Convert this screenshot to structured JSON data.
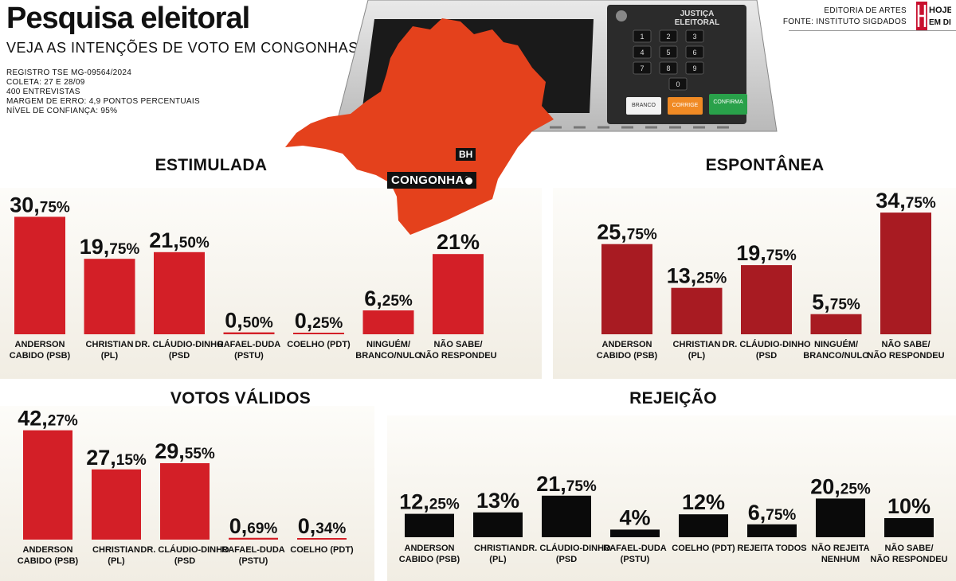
{
  "header": {
    "title": "Pesquisa eleitoral",
    "subtitle": "VEJA AS INTENÇÕES DE VOTO EM CONGONHAS",
    "meta": [
      "REGISTRO TSE MG-09564/2024",
      "COLETA: 27 E 28/09",
      "400 ENTREVISTAS",
      "MARGEM DE ERRO: 4,9 PONTOS PERCENTUAIS",
      "NÍVEL DE CONFIANÇA: 95%"
    ],
    "credit1": "EDITORIA DE ARTES",
    "credit2": "FONTE: INSTITUTO SIGDADOS",
    "logo_line1": "HOJE",
    "logo_line2": "EM DIA"
  },
  "map": {
    "label_bh": "BH",
    "label_city": "CONGONHAS"
  },
  "urna": {
    "brand1": "JUSTIÇA",
    "brand2": "ELEITORAL",
    "btn_branco": "BRANCO",
    "btn_corrige": "CORRIGE",
    "btn_confirma": "CONFIRMA"
  },
  "colors": {
    "red": "#d31f27",
    "darkred": "#a81b22",
    "black": "#0a0a0a",
    "map": "#e4411c"
  },
  "chart_data": [
    {
      "type": "bar",
      "title": "ESTIMULADA",
      "categories": [
        [
          "ANDERSON",
          "CABIDO (PSB)"
        ],
        [
          "CHRISTIAN",
          "(PL)"
        ],
        [
          "DR. CLÁUDIO-DINHO",
          "(PSD"
        ],
        [
          "RAFAEL-DUDA",
          "(PSTU)"
        ],
        [
          "COELHO (PDT)"
        ],
        [
          "NINGUÉM/",
          "BRANCO/NULO"
        ],
        [
          "NÃO SABE/",
          "NÃO RESPONDEU"
        ]
      ],
      "values": [
        30.75,
        19.75,
        21.5,
        0.5,
        0.25,
        6.25,
        21
      ],
      "labels": [
        [
          "30,",
          "75%"
        ],
        [
          "19,",
          "75%"
        ],
        [
          "21,",
          "50%"
        ],
        [
          "0,",
          "50%"
        ],
        [
          "0,",
          "25%"
        ],
        [
          "6,",
          "25%"
        ],
        [
          "21%",
          ""
        ]
      ]
    },
    {
      "type": "bar",
      "title": "ESPONTÂNEA",
      "categories": [
        [
          "ANDERSON",
          "CABIDO (PSB)"
        ],
        [
          "CHRISTIAN",
          "(PL)"
        ],
        [
          "DR. CLÁUDIO-DINHO",
          "(PSD"
        ],
        [
          "NINGUÉM/",
          "BRANCO/NULO"
        ],
        [
          "NÃO SABE/",
          "NÃO RESPONDEU"
        ]
      ],
      "values": [
        25.75,
        13.25,
        19.75,
        5.75,
        34.75
      ],
      "labels": [
        [
          "25,",
          "75%"
        ],
        [
          "13,",
          "25%"
        ],
        [
          "19,",
          "75%"
        ],
        [
          "5,",
          "75%"
        ],
        [
          "34,",
          "75%"
        ]
      ]
    },
    {
      "type": "bar",
      "title": "VOTOS VÁLIDOS",
      "categories": [
        [
          "ANDERSON",
          "CABIDO (PSB)"
        ],
        [
          "CHRISTIAN",
          "(PL)"
        ],
        [
          "DR. CLÁUDIO-DINHO",
          "(PSD"
        ],
        [
          "RAFAEL-DUDA",
          "(PSTU)"
        ],
        [
          "COELHO (PDT)"
        ]
      ],
      "values": [
        42.27,
        27.15,
        29.55,
        0.69,
        0.34
      ],
      "labels": [
        [
          "42,",
          "27%"
        ],
        [
          "27,",
          "15%"
        ],
        [
          "29,",
          "55%"
        ],
        [
          "0,",
          "69%"
        ],
        [
          "0,",
          "34%"
        ]
      ]
    },
    {
      "type": "bar",
      "title": "REJEIÇÃO",
      "categories": [
        [
          "ANDERSON",
          "CABIDO (PSB)"
        ],
        [
          "CHRISTIAN",
          "(PL)"
        ],
        [
          "DR. CLÁUDIO-DINHO",
          "(PSD"
        ],
        [
          "RAFAEL-DUDA",
          "(PSTU)"
        ],
        [
          "COELHO (PDT)"
        ],
        [
          "REJEITA TODOS"
        ],
        [
          "NÃO REJEITA",
          "NENHUM"
        ],
        [
          "NÃO SABE/",
          "NÃO RESPONDEU"
        ]
      ],
      "values": [
        12.25,
        13,
        21.75,
        4,
        12,
        6.75,
        20.25,
        10
      ],
      "labels": [
        [
          "12,",
          "25%"
        ],
        [
          "13%",
          ""
        ],
        [
          "21,",
          "75%"
        ],
        [
          "4%",
          ""
        ],
        [
          "12%",
          ""
        ],
        [
          "6,",
          "75%"
        ],
        [
          "20,",
          "25%"
        ],
        [
          "10%",
          ""
        ]
      ]
    }
  ]
}
